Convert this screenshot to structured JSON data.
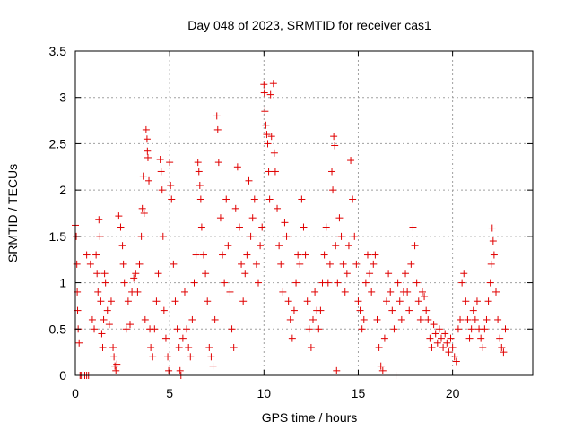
{
  "chart_data": {
    "type": "scatter",
    "title": "Day 048 of 2023, SRMTID for receiver cas1",
    "xlabel": "GPS time / hours",
    "ylabel": "SRMTID / TECUs",
    "xlim": [
      0,
      24.25
    ],
    "ylim": [
      0,
      3.5
    ],
    "xticks": [
      0,
      5,
      10,
      15,
      20
    ],
    "xtick_labels": [
      "0",
      "5",
      "10",
      "15",
      "20"
    ],
    "yticks": [
      0,
      0.5,
      1,
      1.5,
      2,
      2.5,
      3,
      3.5
    ],
    "ytick_labels": [
      "0",
      "0.5",
      "1",
      "1.5",
      "2",
      "2.5",
      "3",
      "3.5"
    ],
    "grid": true,
    "marker": "plus",
    "color": "#e00000",
    "series": [
      {
        "name": "SRMTID",
        "points": [
          [
            0.0,
            1.62
          ],
          [
            0.05,
            1.5
          ],
          [
            0.08,
            1.2
          ],
          [
            0.1,
            0.9
          ],
          [
            0.12,
            0.7
          ],
          [
            0.15,
            0.5
          ],
          [
            0.2,
            0.35
          ],
          [
            0.25,
            0.0
          ],
          [
            0.3,
            0.0
          ],
          [
            0.4,
            0.0
          ],
          [
            0.5,
            0.0
          ],
          [
            0.6,
            0.0
          ],
          [
            0.7,
            0.0
          ],
          [
            0.6,
            1.3
          ],
          [
            0.8,
            1.2
          ],
          [
            0.9,
            0.6
          ],
          [
            1.0,
            0.5
          ],
          [
            1.1,
            1.3
          ],
          [
            1.15,
            1.1
          ],
          [
            1.2,
            0.9
          ],
          [
            1.25,
            1.68
          ],
          [
            1.3,
            1.5
          ],
          [
            1.35,
            0.8
          ],
          [
            1.4,
            0.45
          ],
          [
            1.45,
            0.3
          ],
          [
            1.5,
            0.6
          ],
          [
            1.55,
            1.1
          ],
          [
            1.6,
            1.0
          ],
          [
            1.7,
            0.7
          ],
          [
            1.8,
            0.55
          ],
          [
            1.9,
            0.8
          ],
          [
            2.0,
            0.3
          ],
          [
            2.05,
            0.2
          ],
          [
            2.1,
            0.1
          ],
          [
            2.15,
            0.05
          ],
          [
            2.2,
            0.12
          ],
          [
            2.3,
            1.72
          ],
          [
            2.4,
            1.6
          ],
          [
            2.5,
            1.4
          ],
          [
            2.55,
            1.2
          ],
          [
            2.6,
            1.0
          ],
          [
            2.7,
            0.5
          ],
          [
            2.8,
            0.8
          ],
          [
            2.9,
            0.55
          ],
          [
            3.0,
            0.9
          ],
          [
            3.1,
            1.05
          ],
          [
            3.2,
            1.1
          ],
          [
            3.3,
            0.9
          ],
          [
            3.4,
            1.2
          ],
          [
            3.5,
            1.5
          ],
          [
            3.55,
            1.8
          ],
          [
            3.6,
            2.15
          ],
          [
            3.65,
            1.75
          ],
          [
            3.7,
            0.6
          ],
          [
            3.75,
            2.65
          ],
          [
            3.8,
            2.55
          ],
          [
            3.82,
            2.42
          ],
          [
            3.85,
            2.35
          ],
          [
            3.9,
            2.1
          ],
          [
            3.95,
            0.5
          ],
          [
            4.0,
            0.3
          ],
          [
            4.1,
            0.2
          ],
          [
            4.2,
            0.5
          ],
          [
            4.3,
            0.8
          ],
          [
            4.4,
            1.1
          ],
          [
            4.5,
            2.33
          ],
          [
            4.55,
            2.2
          ],
          [
            4.6,
            2.0
          ],
          [
            4.65,
            1.5
          ],
          [
            4.7,
            0.7
          ],
          [
            4.8,
            0.4
          ],
          [
            4.9,
            0.2
          ],
          [
            4.95,
            0.05
          ],
          [
            5.0,
            2.3
          ],
          [
            5.05,
            2.05
          ],
          [
            5.1,
            1.9
          ],
          [
            5.2,
            1.2
          ],
          [
            5.3,
            0.8
          ],
          [
            5.4,
            0.5
          ],
          [
            5.5,
            0.3
          ],
          [
            5.55,
            0.05
          ],
          [
            5.6,
            0.0
          ],
          [
            5.7,
            0.4
          ],
          [
            5.8,
            0.9
          ],
          [
            5.9,
            0.5
          ],
          [
            6.0,
            0.3
          ],
          [
            6.1,
            0.2
          ],
          [
            6.2,
            0.6
          ],
          [
            6.3,
            1.0
          ],
          [
            6.4,
            1.3
          ],
          [
            6.5,
            2.3
          ],
          [
            6.55,
            2.2
          ],
          [
            6.6,
            2.05
          ],
          [
            6.65,
            1.9
          ],
          [
            6.7,
            1.6
          ],
          [
            6.8,
            1.3
          ],
          [
            6.9,
            1.1
          ],
          [
            7.0,
            0.8
          ],
          [
            7.1,
            0.3
          ],
          [
            7.2,
            0.2
          ],
          [
            7.3,
            0.1
          ],
          [
            7.4,
            0.6
          ],
          [
            7.5,
            2.8
          ],
          [
            7.55,
            2.65
          ],
          [
            7.6,
            2.3
          ],
          [
            7.7,
            1.7
          ],
          [
            7.8,
            1.3
          ],
          [
            7.9,
            1.0
          ],
          [
            8.0,
            1.9
          ],
          [
            8.1,
            1.4
          ],
          [
            8.2,
            0.9
          ],
          [
            8.3,
            0.5
          ],
          [
            8.4,
            0.3
          ],
          [
            8.5,
            1.8
          ],
          [
            8.6,
            2.25
          ],
          [
            8.7,
            1.6
          ],
          [
            8.8,
            1.2
          ],
          [
            8.9,
            0.8
          ],
          [
            9.0,
            1.1
          ],
          [
            9.1,
            1.3
          ],
          [
            9.2,
            2.1
          ],
          [
            9.3,
            1.5
          ],
          [
            9.4,
            1.7
          ],
          [
            9.5,
            1.9
          ],
          [
            9.6,
            1.2
          ],
          [
            9.7,
            1.0
          ],
          [
            9.8,
            1.4
          ],
          [
            9.9,
            1.6
          ],
          [
            10.0,
            3.14
          ],
          [
            10.02,
            3.05
          ],
          [
            10.05,
            2.85
          ],
          [
            10.1,
            2.7
          ],
          [
            10.15,
            2.6
          ],
          [
            10.2,
            2.5
          ],
          [
            10.25,
            2.2
          ],
          [
            10.3,
            1.9
          ],
          [
            10.35,
            3.03
          ],
          [
            10.4,
            2.58
          ],
          [
            10.5,
            3.15
          ],
          [
            10.55,
            2.4
          ],
          [
            10.6,
            2.2
          ],
          [
            10.7,
            1.8
          ],
          [
            10.8,
            1.4
          ],
          [
            10.9,
            1.2
          ],
          [
            11.0,
            0.9
          ],
          [
            11.1,
            1.65
          ],
          [
            11.2,
            1.5
          ],
          [
            11.3,
            0.8
          ],
          [
            11.4,
            0.6
          ],
          [
            11.5,
            0.4
          ],
          [
            11.6,
            0.7
          ],
          [
            11.7,
            1.0
          ],
          [
            11.8,
            1.3
          ],
          [
            11.9,
            1.2
          ],
          [
            12.0,
            1.9
          ],
          [
            12.1,
            1.6
          ],
          [
            12.2,
            1.3
          ],
          [
            12.3,
            0.8
          ],
          [
            12.4,
            0.5
          ],
          [
            12.5,
            0.3
          ],
          [
            12.6,
            0.6
          ],
          [
            12.7,
            0.9
          ],
          [
            12.8,
            0.7
          ],
          [
            12.9,
            0.5
          ],
          [
            13.0,
            0.7
          ],
          [
            13.1,
            1.0
          ],
          [
            13.2,
            1.3
          ],
          [
            13.3,
            1.6
          ],
          [
            13.4,
            1.0
          ],
          [
            13.5,
            1.2
          ],
          [
            13.6,
            2.2
          ],
          [
            13.65,
            2.0
          ],
          [
            13.7,
            2.58
          ],
          [
            13.75,
            2.48
          ],
          [
            13.8,
            1.4
          ],
          [
            13.85,
            0.05
          ],
          [
            13.9,
            1.0
          ],
          [
            14.0,
            1.7
          ],
          [
            14.1,
            1.5
          ],
          [
            14.2,
            1.2
          ],
          [
            14.3,
            0.9
          ],
          [
            14.4,
            1.1
          ],
          [
            14.5,
            1.4
          ],
          [
            14.6,
            2.32
          ],
          [
            14.7,
            1.9
          ],
          [
            14.8,
            1.5
          ],
          [
            14.9,
            1.2
          ],
          [
            15.0,
            0.8
          ],
          [
            15.1,
            0.7
          ],
          [
            15.2,
            0.5
          ],
          [
            15.3,
            0.6
          ],
          [
            15.4,
            1.0
          ],
          [
            15.5,
            1.3
          ],
          [
            15.6,
            1.1
          ],
          [
            15.7,
            0.9
          ],
          [
            15.8,
            1.2
          ],
          [
            15.9,
            1.3
          ],
          [
            16.0,
            0.6
          ],
          [
            16.1,
            0.3
          ],
          [
            16.2,
            0.1
          ],
          [
            16.3,
            0.05
          ],
          [
            16.4,
            0.4
          ],
          [
            16.5,
            0.8
          ],
          [
            16.6,
            1.1
          ],
          [
            16.7,
            0.9
          ],
          [
            16.8,
            0.7
          ],
          [
            16.9,
            0.5
          ],
          [
            17.0,
            0.0
          ],
          [
            17.1,
            1.0
          ],
          [
            17.2,
            0.8
          ],
          [
            17.3,
            0.6
          ],
          [
            17.4,
            0.9
          ],
          [
            17.5,
            1.1
          ],
          [
            17.6,
            0.9
          ],
          [
            17.7,
            0.7
          ],
          [
            17.8,
            1.2
          ],
          [
            17.9,
            1.6
          ],
          [
            18.0,
            1.4
          ],
          [
            18.1,
            1.0
          ],
          [
            18.2,
            0.8
          ],
          [
            18.3,
            0.6
          ],
          [
            18.4,
            0.9
          ],
          [
            18.5,
            0.85
          ],
          [
            18.6,
            0.7
          ],
          [
            18.7,
            0.6
          ],
          [
            18.8,
            0.4
          ],
          [
            18.9,
            0.3
          ],
          [
            19.0,
            0.55
          ],
          [
            19.1,
            0.45
          ],
          [
            19.2,
            0.35
          ],
          [
            19.3,
            0.5
          ],
          [
            19.4,
            0.4
          ],
          [
            19.5,
            0.3
          ],
          [
            19.6,
            0.45
          ],
          [
            19.7,
            0.35
          ],
          [
            19.8,
            0.25
          ],
          [
            19.9,
            0.4
          ],
          [
            20.0,
            0.3
          ],
          [
            20.1,
            0.2
          ],
          [
            20.2,
            0.15
          ],
          [
            20.3,
            0.5
          ],
          [
            20.4,
            0.6
          ],
          [
            20.5,
            1.0
          ],
          [
            20.6,
            1.1
          ],
          [
            20.7,
            0.8
          ],
          [
            20.8,
            0.6
          ],
          [
            20.9,
            0.4
          ],
          [
            21.0,
            0.5
          ],
          [
            21.1,
            0.7
          ],
          [
            21.2,
            0.6
          ],
          [
            21.3,
            0.8
          ],
          [
            21.4,
            0.5
          ],
          [
            21.5,
            0.4
          ],
          [
            21.6,
            0.3
          ],
          [
            21.7,
            0.5
          ],
          [
            21.8,
            0.6
          ],
          [
            21.9,
            0.8
          ],
          [
            22.0,
            1.0
          ],
          [
            22.05,
            1.2
          ],
          [
            22.1,
            1.59
          ],
          [
            22.15,
            1.45
          ],
          [
            22.2,
            1.3
          ],
          [
            22.3,
            0.9
          ],
          [
            22.4,
            0.6
          ],
          [
            22.5,
            0.4
          ],
          [
            22.6,
            0.3
          ],
          [
            22.7,
            0.25
          ],
          [
            22.8,
            0.5
          ]
        ]
      }
    ]
  }
}
